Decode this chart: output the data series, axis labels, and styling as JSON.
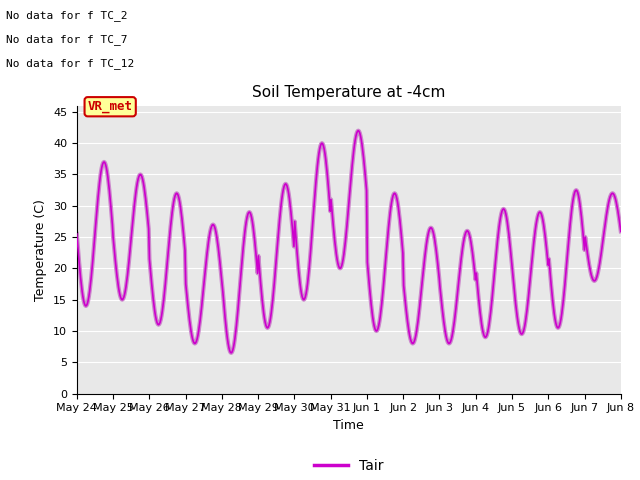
{
  "title": "Soil Temperature at -4cm",
  "xlabel": "Time",
  "ylabel": "Temperature (C)",
  "ylim": [
    0,
    46
  ],
  "yticks": [
    0,
    5,
    10,
    15,
    20,
    25,
    30,
    35,
    40,
    45
  ],
  "line_color": "#CC00CC",
  "line_color2": "#CC88CC",
  "line_width": 1.2,
  "legend_label": "Tair",
  "bg_color": "#E8E8E8",
  "annotations": [
    "No data for f TC_2",
    "No data for f TC_7",
    "No data for f TC_12"
  ],
  "legend_box_color": "#FFFF99",
  "legend_box_edge": "#CC0000",
  "x_labels": [
    "May 24",
    "May 25",
    "May 26",
    "May 27",
    "May 28",
    "May 29",
    "May 30",
    "May 31",
    "Jun 1",
    "Jun 2",
    "Jun 3",
    "Jun 4",
    "Jun 5",
    "Jun 6",
    "Jun 7",
    "Jun 8"
  ],
  "daily_mins": [
    14,
    15,
    11,
    8,
    6.5,
    10.5,
    15,
    20,
    10,
    8,
    8,
    9,
    9.5,
    10.5,
    18
  ],
  "daily_maxs": [
    37,
    35,
    32,
    27,
    29,
    33.5,
    40,
    42,
    32,
    26.5,
    26,
    29.5,
    29,
    32.5,
    32
  ]
}
